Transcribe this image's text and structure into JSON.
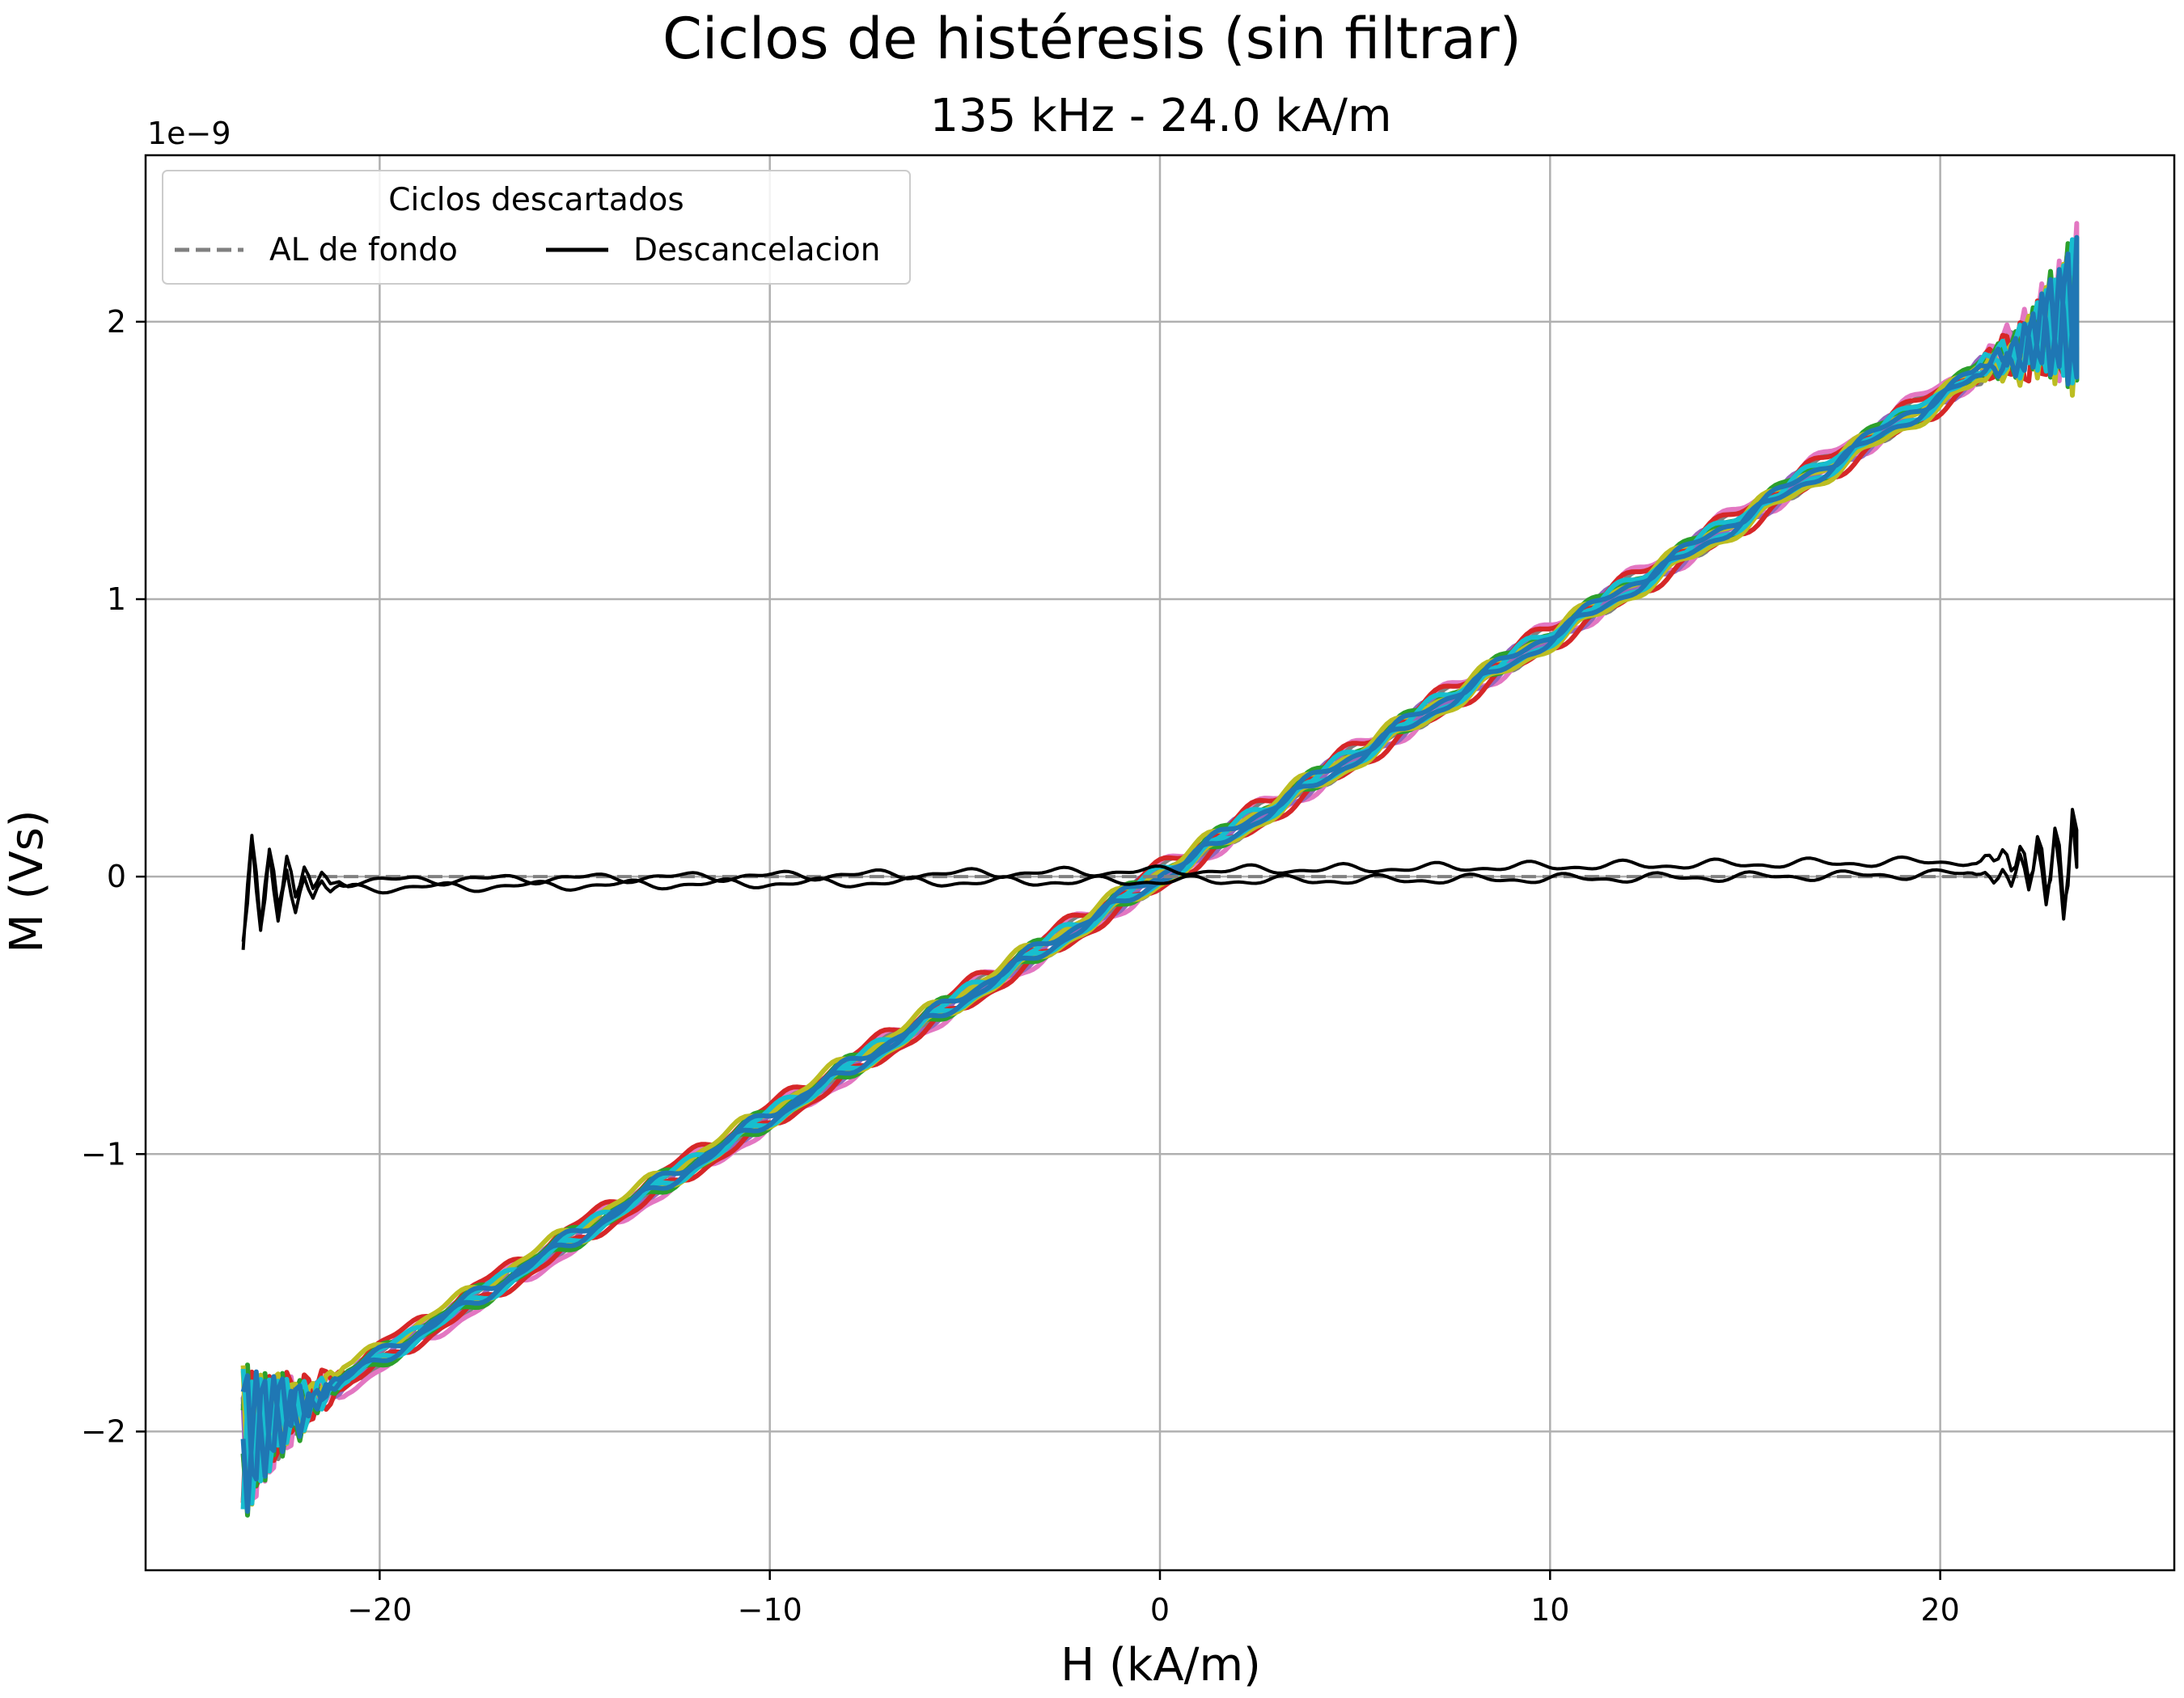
{
  "chart_data": {
    "type": "line",
    "title": "Ciclos de histéresis (sin filtrar)",
    "subtitle": "135 kHz - 24.0 kA/m",
    "xlabel": "H (kA/m)",
    "ylabel": "M (Vs)",
    "y_offset_text": "1e−9",
    "xlim": [
      -26,
      26
    ],
    "ylim": [
      -2.5,
      2.6
    ],
    "y_scale_factor": 1e-09,
    "grid": true,
    "x_ticks": [
      -20,
      -10,
      0,
      10,
      20
    ],
    "x_tick_labels": [
      "−20",
      "−10",
      "0",
      "10",
      "20"
    ],
    "y_ticks": [
      -2,
      -1,
      0,
      1,
      2
    ],
    "y_tick_labels": [
      "−2",
      "−1",
      "0",
      "1",
      "2"
    ],
    "legend": {
      "title": "Ciclos descartados",
      "position": "top-left",
      "entries": [
        {
          "label": "AL de fondo",
          "color": "#808080",
          "style": "dashed"
        },
        {
          "label": "Descancelacion",
          "color": "#000000",
          "style": "solid"
        }
      ]
    },
    "colors": {
      "blue": "#1f77b4",
      "orange": "#ff7f0e",
      "green": "#2ca02c",
      "red": "#d62728",
      "purple": "#9467bd",
      "brown": "#8c564b",
      "pink": "#e377c2",
      "gray": "#7f7f7f",
      "olive": "#bcbd22",
      "cyan": "#17becf",
      "black": "#000000"
    },
    "series": [
      {
        "role": "cycle",
        "color": "#7f7f7f",
        "x_range": [
          -23.5,
          23.5
        ],
        "slope": 0.0868,
        "loop_halfwidth": 0.015
      },
      {
        "role": "cycle",
        "color": "#e377c2",
        "x_range": [
          -23.5,
          23.5
        ],
        "slope": 0.0872,
        "loop_halfwidth": 0.03
      },
      {
        "role": "cycle",
        "color": "#9467bd",
        "x_range": [
          -23.5,
          23.5
        ],
        "slope": 0.0866,
        "loop_halfwidth": 0.015
      },
      {
        "role": "cycle",
        "color": "#d62728",
        "x_range": [
          -23.5,
          23.5
        ],
        "slope": 0.0863,
        "loop_halfwidth": 0.035
      },
      {
        "role": "cycle",
        "color": "#2ca02c",
        "x_range": [
          -23.5,
          23.5
        ],
        "slope": 0.0867,
        "loop_halfwidth": 0.02
      },
      {
        "role": "cycle",
        "color": "#bcbd22",
        "x_range": [
          -23.5,
          23.5
        ],
        "slope": 0.086,
        "loop_halfwidth": 0.025
      },
      {
        "role": "cycle",
        "color": "#17becf",
        "x_range": [
          -23.5,
          23.5
        ],
        "slope": 0.0866,
        "loop_halfwidth": 0.015
      },
      {
        "role": "cycle",
        "color": "#1f77b4",
        "x_range": [
          -23.5,
          23.5
        ],
        "slope": 0.0865,
        "loop_halfwidth": 0.01
      },
      {
        "role": "background",
        "color": "#808080",
        "dashed": true,
        "x": [
          -22.0,
          22.0
        ],
        "y": [
          0.0,
          0.0
        ]
      },
      {
        "role": "descancelacion",
        "color": "#000000",
        "x_range": [
          -23.5,
          23.5
        ],
        "slope": 0.0017,
        "loop_halfwidth": 0.02
      }
    ]
  }
}
